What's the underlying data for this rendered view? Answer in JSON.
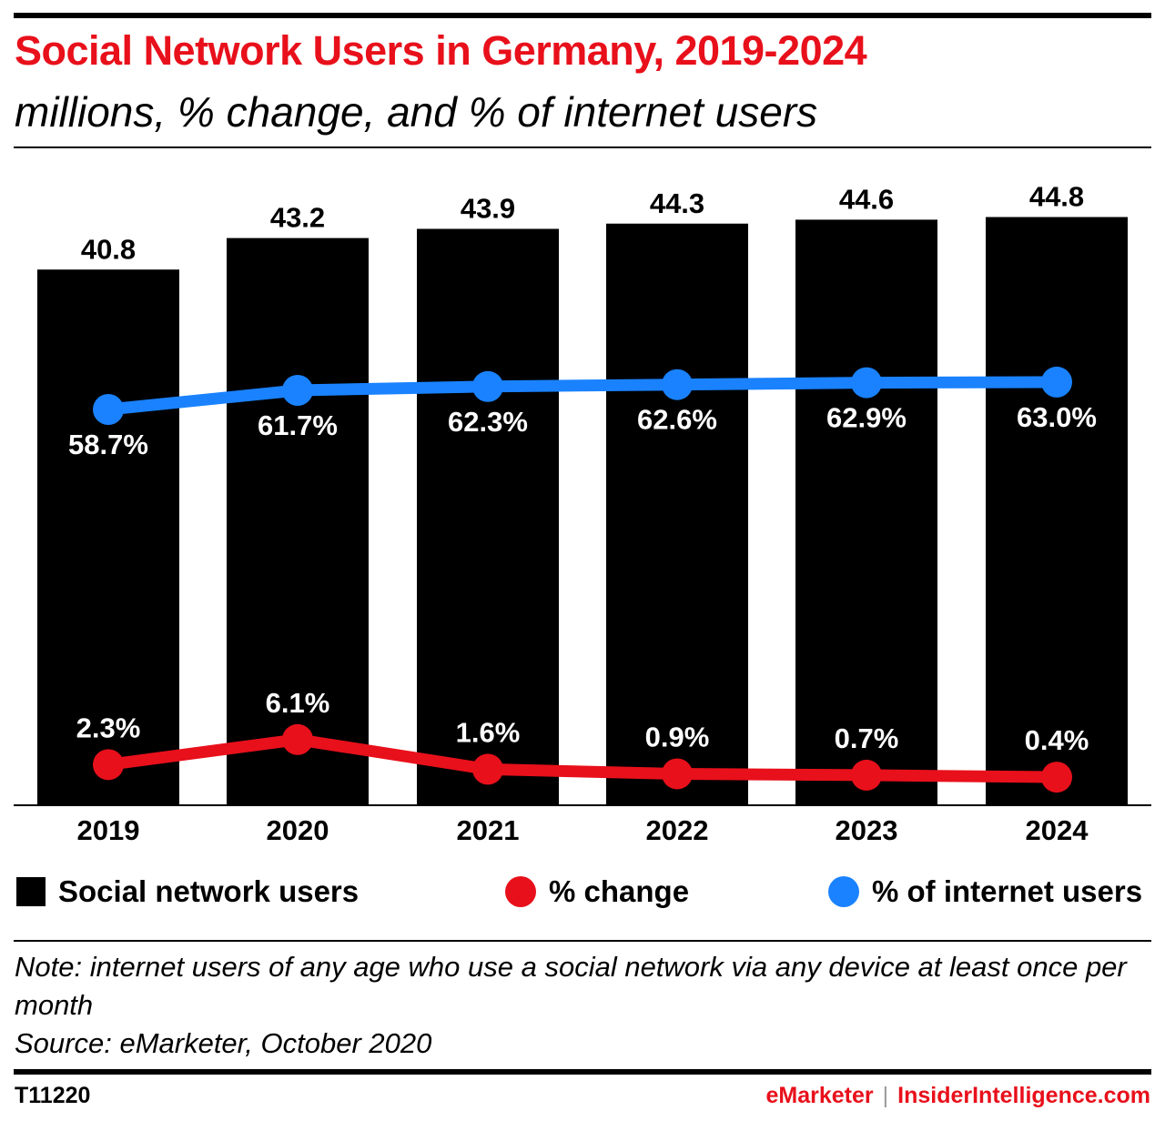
{
  "header": {
    "title": "Social Network Users in Germany, 2019-2024",
    "subtitle": "millions, % change, and % of internet users"
  },
  "chart_data": {
    "type": "bar",
    "categories": [
      "2019",
      "2020",
      "2021",
      "2022",
      "2023",
      "2024"
    ],
    "series": [
      {
        "name": "Social network users",
        "type": "bar",
        "values": [
          40.8,
          43.2,
          43.9,
          44.3,
          44.6,
          44.8
        ],
        "labels": [
          "40.8",
          "43.2",
          "43.9",
          "44.3",
          "44.6",
          "44.8"
        ],
        "color": "#000000"
      },
      {
        "name": "% change",
        "type": "line",
        "values": [
          2.3,
          6.1,
          1.6,
          0.9,
          0.7,
          0.4
        ],
        "labels": [
          "2.3%",
          "6.1%",
          "1.6%",
          "0.9%",
          "0.7%",
          "0.4%"
        ],
        "color": "#e8101b"
      },
      {
        "name": "% of internet users",
        "type": "line",
        "values": [
          58.7,
          61.7,
          62.3,
          62.6,
          62.9,
          63.0
        ],
        "labels": [
          "58.7%",
          "61.7%",
          "62.3%",
          "62.6%",
          "62.9%",
          "63.0%"
        ],
        "color": "#1a82ff"
      }
    ],
    "legend": "bottom",
    "grid": false
  },
  "footer": {
    "note": "Note: internet users of any age who use a social network via any device at least once per month",
    "source": "Source: eMarketer, October 2020",
    "code": "T11220",
    "brand_emarketer": "eMarketer",
    "brand_separator": "|",
    "brand_insider": "InsiderIntelligence.com"
  }
}
